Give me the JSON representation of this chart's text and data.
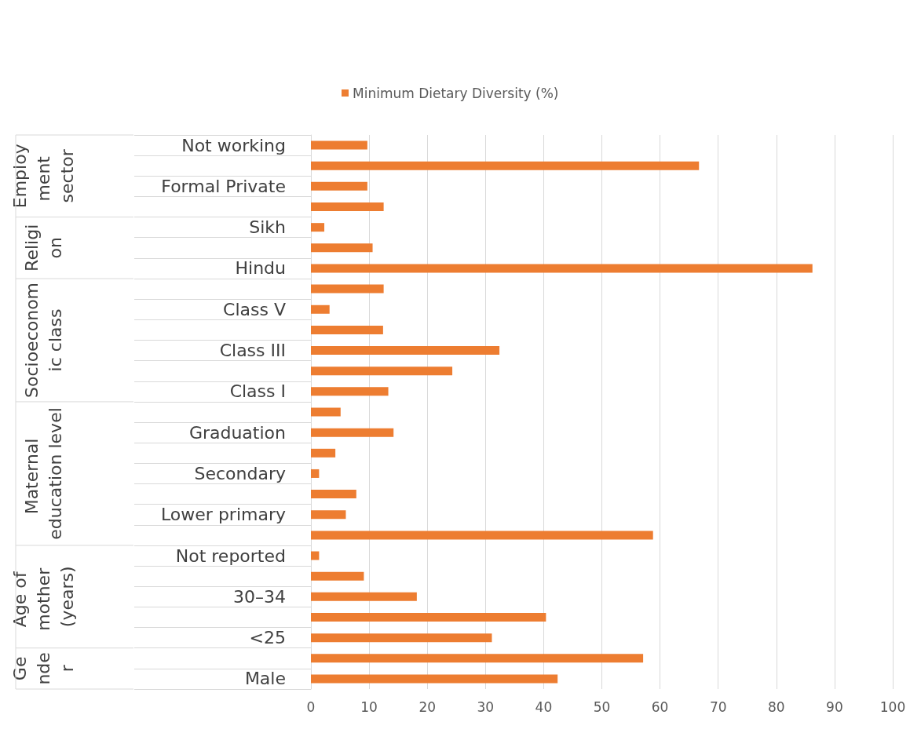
{
  "chart_data": {
    "type": "bar",
    "orientation": "horizontal",
    "categories": [
      "Not working",
      null,
      "Formal Private",
      null,
      "Sikh",
      null,
      "Hindu",
      null,
      "Class V",
      null,
      "Class III",
      null,
      "Class I",
      null,
      "Graduation",
      null,
      "Secondary",
      null,
      "Lower primary",
      null,
      "Not reported",
      null,
      "30–34",
      null,
      "<25",
      null,
      "Male"
    ],
    "series": [
      {
        "name": "Minimum Dietary Diversity (%)",
        "color": "#ed7d31",
        "values": [
          9.7,
          66.7,
          9.7,
          12.5,
          2.3,
          10.6,
          86.2,
          12.5,
          3.2,
          12.4,
          32.4,
          24.3,
          13.3,
          5.1,
          14.2,
          4.2,
          1.4,
          7.8,
          6.0,
          58.8,
          1.4,
          9.1,
          18.2,
          40.4,
          31.1,
          57.1,
          42.4
        ]
      }
    ],
    "xlim": [
      0,
      100
    ],
    "xticks": [
      0,
      10,
      20,
      30,
      40,
      50,
      60,
      70,
      80,
      90,
      100
    ],
    "annotations": [
      "Employment sector",
      "Religion",
      "Socioeconomic class",
      "Maternal education level",
      "Age of mother (years)",
      "Gender"
    ],
    "grid": "x",
    "legend": "top"
  }
}
